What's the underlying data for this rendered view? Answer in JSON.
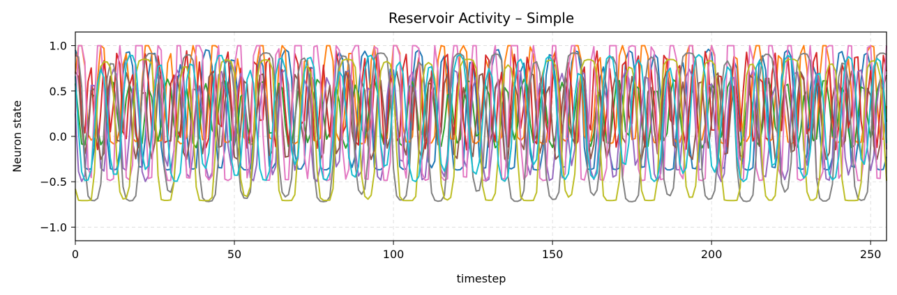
{
  "chart_data": {
    "type": "line",
    "title": "Reservoir Activity – Simple",
    "xlabel": "timestep",
    "ylabel": "Neuron state",
    "xlim": [
      0,
      255
    ],
    "ylim": [
      -1.15,
      1.15
    ],
    "xticks": [
      0,
      50,
      100,
      150,
      200,
      250
    ],
    "yticks": [
      -1.0,
      -0.5,
      0.0,
      0.5,
      1.0
    ],
    "ytick_labels": [
      "−1.0",
      "−0.5",
      "0.0",
      "0.5",
      "1.0"
    ],
    "grid": true,
    "legend": "none",
    "series": [
      {
        "color": "#1f77b4",
        "period": 8.3,
        "phase": 1.7,
        "amp": 0.78,
        "offset": 0.18,
        "clipLow": -0.33,
        "sharp": 1.4
      },
      {
        "color": "#ff7f0e",
        "period": 7.1,
        "phase": 0.3,
        "amp": 0.85,
        "offset": 0.3,
        "clipLow": 0.0,
        "sharp": 1.0
      },
      {
        "color": "#2ca02c",
        "period": 5.9,
        "phase": 2.1,
        "amp": 0.38,
        "offset": 0.25,
        "clipLow": -0.2,
        "sharp": 1.0
      },
      {
        "color": "#d62728",
        "period": 4.3,
        "phase": 0.9,
        "amp": 0.55,
        "offset": 0.4,
        "clipLow": -0.35,
        "sharp": 0.8
      },
      {
        "color": "#9467bd",
        "period": 6.7,
        "phase": 2.8,
        "amp": 0.62,
        "offset": 0.12,
        "clipLow": -0.6,
        "sharp": 1.2
      },
      {
        "color": "#8c564b",
        "period": 5.3,
        "phase": 1.2,
        "amp": 0.5,
        "offset": 0.22,
        "clipLow": -0.25,
        "sharp": 1.0
      },
      {
        "color": "#e377c2",
        "period": 6.2,
        "phase": 0.0,
        "amp": 0.95,
        "offset": 0.25,
        "clipLow": -0.45,
        "sharp": 1.6
      },
      {
        "color": "#7f7f7f",
        "period": 12.1,
        "phase": 1.9,
        "amp": 0.82,
        "offset": 0.1,
        "clipLow": -0.77,
        "sharp": 2.0
      },
      {
        "color": "#bcbd22",
        "period": 12.7,
        "phase": 3.3,
        "amp": 0.8,
        "offset": 0.05,
        "clipLow": -0.7,
        "sharp": 2.2
      },
      {
        "color": "#17becf",
        "period": 9.4,
        "phase": 2.5,
        "amp": 0.7,
        "offset": 0.2,
        "clipLow": -0.67,
        "sharp": 1.3
      }
    ]
  }
}
